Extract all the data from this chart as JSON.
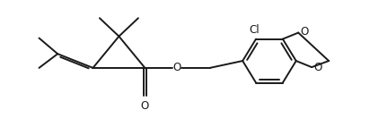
{
  "background_color": "#ffffff",
  "line_color": "#1a1a1a",
  "line_width": 1.4,
  "font_size": 8.5,
  "figsize": [
    4.22,
    1.42
  ],
  "dpi": 100,
  "xlim": [
    0,
    10
  ],
  "ylim": [
    0,
    3.55
  ]
}
